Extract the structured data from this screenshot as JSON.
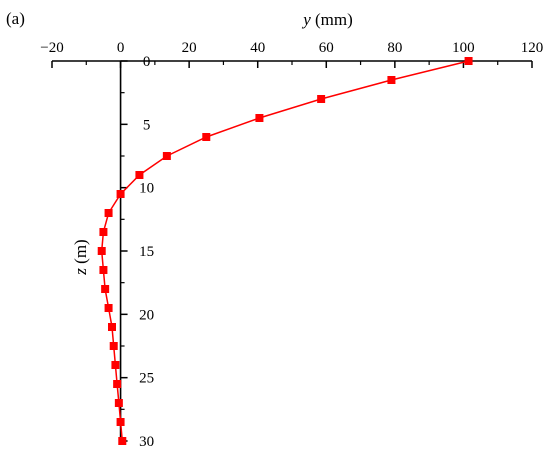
{
  "chart_data": {
    "type": "line",
    "panel_label": "(a)",
    "xlabel_var": "y",
    "xlabel_unit": " (mm)",
    "ylabel_var": "z",
    "ylabel_unit": " (m)",
    "xlim": [
      -20,
      120
    ],
    "ylim": [
      0,
      30
    ],
    "y_inverted": true,
    "x_axis_position": "top",
    "x_ticks": [
      -20,
      0,
      20,
      40,
      60,
      80,
      100,
      120
    ],
    "x_tick_labels": [
      "−20",
      "0",
      "20",
      "40",
      "60",
      "80",
      "100",
      "120"
    ],
    "y_ticks": [
      0,
      5,
      10,
      15,
      20,
      25,
      30
    ],
    "y_tick_labels": [
      "0",
      "5",
      "10",
      "15",
      "20",
      "25",
      "30"
    ],
    "grid": false,
    "series": [
      {
        "color": "#ff0000",
        "marker": "square",
        "x": [
          101.5,
          79,
          58.5,
          40.5,
          25,
          13.5,
          5.5,
          0,
          -3.5,
          -5,
          -5.5,
          -5,
          -4.5,
          -3.5,
          -2.5,
          -2,
          -1.5,
          -1,
          -0.5,
          0,
          0.5
        ],
        "y": [
          0,
          1.5,
          3,
          4.5,
          6,
          7.5,
          9,
          10.5,
          12,
          13.5,
          15,
          16.5,
          18,
          19.5,
          21,
          22.5,
          24,
          25.5,
          27,
          28.5,
          30
        ]
      }
    ]
  }
}
